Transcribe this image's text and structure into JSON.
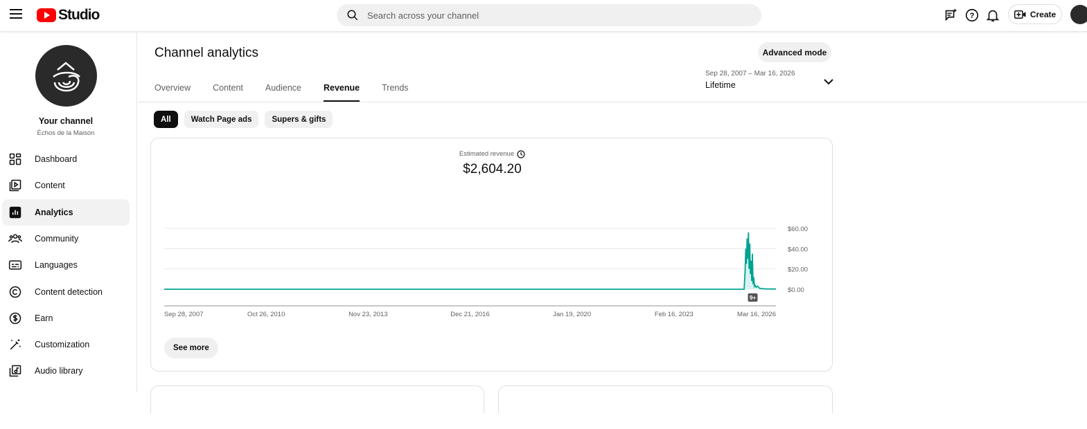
{
  "header": {
    "app": "Studio",
    "search_placeholder": "Search across your channel",
    "create_label": "Create"
  },
  "sidebar": {
    "channel_title": "Your channel",
    "channel_name": "Échos de la Maison",
    "items": [
      {
        "label": "Dashboard",
        "icon": "dashboard-icon"
      },
      {
        "label": "Content",
        "icon": "content-icon"
      },
      {
        "label": "Analytics",
        "icon": "analytics-icon",
        "active": true
      },
      {
        "label": "Community",
        "icon": "community-icon"
      },
      {
        "label": "Languages",
        "icon": "languages-icon"
      },
      {
        "label": "Content detection",
        "icon": "copyright-icon"
      },
      {
        "label": "Earn",
        "icon": "dollar-icon"
      },
      {
        "label": "Customization",
        "icon": "magic-wand-icon"
      },
      {
        "label": "Audio library",
        "icon": "audio-library-icon"
      }
    ]
  },
  "main": {
    "title": "Channel analytics",
    "advanced_mode": "Advanced mode",
    "tabs": [
      "Overview",
      "Content",
      "Audience",
      "Revenue",
      "Trends"
    ],
    "active_tab": "Revenue",
    "date_range": "Sep 28, 2007 – Mar 16, 2026",
    "date_preset": "Lifetime",
    "chips": [
      "All",
      "Watch Page ads",
      "Supers & gifts"
    ],
    "metric_label": "Estimated revenue",
    "metric_value": "$2,604.20",
    "see_more": "See more",
    "marker_badge": "9+"
  },
  "colors": {
    "line": "#00a392",
    "fill": "#d9f3f0"
  },
  "chart_data": {
    "type": "line",
    "title": "Estimated revenue",
    "xlabel": "",
    "ylabel": "",
    "x_ticks": [
      "Sep 28, 2007",
      "Oct 26, 2010",
      "Nov 23, 2013",
      "Dec 21, 2016",
      "Jan 19, 2020",
      "Feb 16, 2023",
      "Mar 16, 2026"
    ],
    "y_ticks": [
      "$0.00",
      "$20.00",
      "$40.00",
      "$60.00"
    ],
    "xlim": [
      2007.74,
      2026.2
    ],
    "ylim": [
      0,
      60
    ],
    "series": [
      {
        "name": "Estimated revenue",
        "points": [
          [
            2007.74,
            0
          ],
          [
            2025.24,
            0
          ],
          [
            2025.27,
            18
          ],
          [
            2025.29,
            40
          ],
          [
            2025.31,
            25
          ],
          [
            2025.33,
            50
          ],
          [
            2025.35,
            30
          ],
          [
            2025.37,
            56
          ],
          [
            2025.39,
            20
          ],
          [
            2025.41,
            45
          ],
          [
            2025.43,
            15
          ],
          [
            2025.45,
            28
          ],
          [
            2025.47,
            8
          ],
          [
            2025.49,
            35
          ],
          [
            2025.51,
            5
          ],
          [
            2025.53,
            12
          ],
          [
            2025.55,
            3
          ],
          [
            2025.57,
            4
          ],
          [
            2025.6,
            2
          ],
          [
            2025.65,
            3
          ],
          [
            2025.7,
            1
          ],
          [
            2025.8,
            0.5
          ],
          [
            2025.9,
            0.3
          ],
          [
            2026.2,
            0.2
          ]
        ]
      }
    ]
  }
}
